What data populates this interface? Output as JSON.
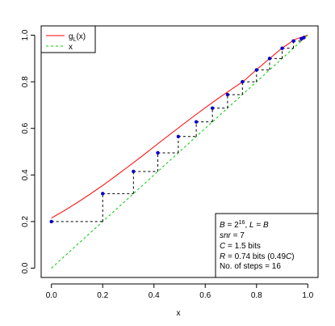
{
  "chart_data": {
    "type": "line",
    "xlabel": "x",
    "ylabel": "",
    "xlim": [
      -0.04,
      1.04
    ],
    "ylim": [
      -0.04,
      1.04
    ],
    "xticks": [
      "0.0",
      "0.2",
      "0.4",
      "0.6",
      "0.8",
      "1.0"
    ],
    "yticks": [
      "0.0",
      "0.2",
      "0.4",
      "0.6",
      "0.8",
      "1.0"
    ],
    "grid": false,
    "legend_position": "top-left",
    "series": [
      {
        "name": "g_L(x)",
        "color": "#ff0000",
        "style": "solid",
        "x": [
          0.0,
          0.05,
          0.1,
          0.15,
          0.2,
          0.25,
          0.3,
          0.35,
          0.4,
          0.45,
          0.5,
          0.55,
          0.6,
          0.65,
          0.7,
          0.75,
          0.8,
          0.85,
          0.9,
          0.95,
          1.0
        ],
        "y": [
          0.215,
          0.247,
          0.281,
          0.317,
          0.355,
          0.395,
          0.436,
          0.478,
          0.521,
          0.564,
          0.606,
          0.648,
          0.689,
          0.728,
          0.766,
          0.803,
          0.852,
          0.899,
          0.945,
          0.982,
          1.0
        ]
      },
      {
        "name": "x",
        "color": "#00cc00",
        "style": "dashed",
        "x": [
          0.0,
          1.0
        ],
        "y": [
          0.0,
          1.0
        ]
      },
      {
        "name": "steps",
        "color": "#0000cc",
        "style": "points",
        "x": [
          0.0,
          0.2,
          0.32,
          0.415,
          0.495,
          0.565,
          0.628,
          0.687,
          0.745,
          0.8,
          0.851,
          0.9,
          0.944,
          0.975,
          0.985
        ],
        "y": [
          0.2,
          0.32,
          0.415,
          0.495,
          0.565,
          0.628,
          0.687,
          0.745,
          0.8,
          0.851,
          0.9,
          0.944,
          0.975,
          0.985,
          0.99
        ]
      }
    ],
    "legend_entries": [
      "g",
      "L",
      "(x)",
      "x"
    ],
    "info_box": {
      "line1": {
        "b_var": "B",
        "eq1": " = 2",
        "exp": "16",
        "sep": ", ",
        "l_var": "L",
        "eq2": " = ",
        "b_var2": "B"
      },
      "line2": {
        "var": "snr",
        "rest": " = 7"
      },
      "line3": {
        "var": "C",
        "rest": " = 1.5 bits"
      },
      "line4": {
        "var": "R",
        "rest": " = 0.74 bits (0.49",
        "var2": "C",
        "close": ")"
      },
      "line5": "No. of steps =  16"
    }
  }
}
